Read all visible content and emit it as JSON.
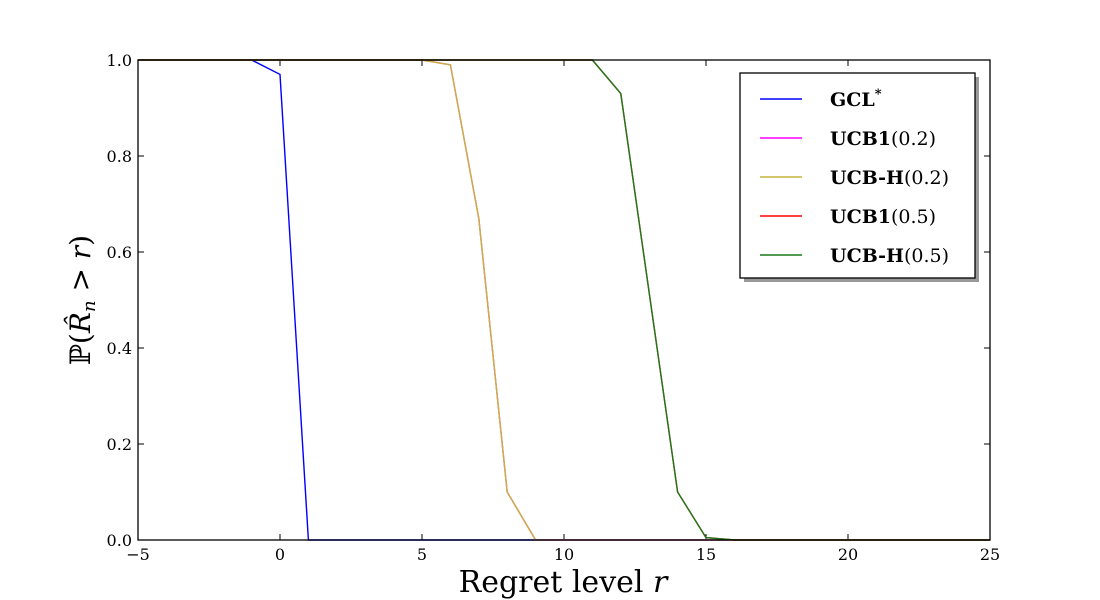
{
  "chart_data": {
    "type": "line",
    "title": "",
    "xlabel": "Regret level r",
    "ylabel": "P(R̂n > r)",
    "xlim": [
      -5,
      25
    ],
    "ylim": [
      0,
      1.0
    ],
    "xticks": [
      -5,
      0,
      5,
      10,
      15,
      20,
      25
    ],
    "yticks": [
      0.0,
      0.2,
      0.4,
      0.6,
      0.8,
      1.0
    ],
    "xtick_labels": [
      "−5",
      "0",
      "5",
      "10",
      "15",
      "20",
      "25"
    ],
    "ytick_labels": [
      "0.0",
      "0.2",
      "0.4",
      "0.6",
      "0.8",
      "1.0"
    ],
    "grid": false,
    "legend_position": "top-right",
    "series": [
      {
        "name": "GCL*",
        "color": "#0000ff",
        "x": [
          -5,
          -1,
          0,
          1,
          25
        ],
        "y": [
          1.0,
          1.0,
          0.97,
          0.0,
          0.0
        ]
      },
      {
        "name": "UCB1(0.2)",
        "color": "#ff00ff",
        "x": [
          -5,
          5,
          6,
          7,
          8,
          9,
          25
        ],
        "y": [
          1.0,
          1.0,
          0.99,
          0.67,
          0.1,
          0.0,
          0.0
        ]
      },
      {
        "name": "UCB-H(0.2)",
        "color": "#c8b43c",
        "x": [
          -5,
          5,
          6,
          7,
          8,
          9,
          25
        ],
        "y": [
          1.0,
          1.0,
          0.99,
          0.67,
          0.1,
          0.0,
          0.0
        ]
      },
      {
        "name": "UCB1(0.5)",
        "color": "#ff0000",
        "x": [
          -5,
          11,
          12,
          14,
          15,
          16,
          25
        ],
        "y": [
          1.0,
          1.0,
          0.93,
          0.1,
          0.005,
          0.0,
          0.0
        ]
      },
      {
        "name": "UCB-H(0.5)",
        "color": "#1a7a1a",
        "x": [
          -5,
          11,
          12,
          14,
          15,
          16,
          25
        ],
        "y": [
          1.0,
          1.0,
          0.93,
          0.1,
          0.005,
          0.0,
          0.0
        ]
      }
    ]
  }
}
